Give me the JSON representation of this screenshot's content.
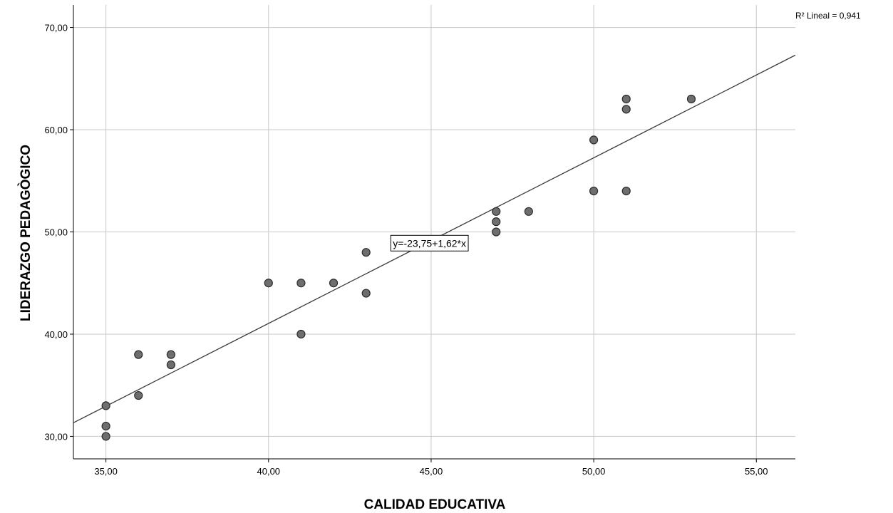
{
  "chart_data": {
    "type": "scatter",
    "xlabel": "CALIDAD EDUCATIVA",
    "ylabel": "LIDERAZGO PEDAGÒGICO",
    "xlim": [
      34,
      56.2
    ],
    "ylim": [
      27.8,
      72.2
    ],
    "x_ticks": [
      35,
      40,
      45,
      50,
      55
    ],
    "x_tick_labels": [
      "35,00",
      "40,00",
      "45,00",
      "50,00",
      "55,00"
    ],
    "y_ticks": [
      30,
      40,
      50,
      60,
      70
    ],
    "y_tick_labels": [
      "30,00",
      "40,00",
      "50,00",
      "60,00",
      "70,00"
    ],
    "grid": true,
    "points": [
      {
        "x": 35,
        "y": 30
      },
      {
        "x": 35,
        "y": 31
      },
      {
        "x": 35,
        "y": 33
      },
      {
        "x": 36,
        "y": 34
      },
      {
        "x": 36,
        "y": 38
      },
      {
        "x": 37,
        "y": 37
      },
      {
        "x": 37,
        "y": 38
      },
      {
        "x": 40,
        "y": 45
      },
      {
        "x": 41,
        "y": 40
      },
      {
        "x": 41,
        "y": 45
      },
      {
        "x": 42,
        "y": 45
      },
      {
        "x": 43,
        "y": 44
      },
      {
        "x": 43,
        "y": 48
      },
      {
        "x": 47,
        "y": 50
      },
      {
        "x": 47,
        "y": 51
      },
      {
        "x": 47,
        "y": 52
      },
      {
        "x": 48,
        "y": 52
      },
      {
        "x": 50,
        "y": 54
      },
      {
        "x": 50,
        "y": 59
      },
      {
        "x": 51,
        "y": 54
      },
      {
        "x": 51,
        "y": 62
      },
      {
        "x": 51,
        "y": 63
      },
      {
        "x": 53,
        "y": 63
      }
    ],
    "fit_line": {
      "intercept": -23.75,
      "slope": 1.62,
      "equation_label": "y=-23,75+1,62*x",
      "label_at": {
        "x": 44.95,
        "y": 48.9
      }
    },
    "r2_label": "R² Lineal = 0,941",
    "colors": {
      "point_fill": "#6e6e6e",
      "point_stroke": "#2b2b2b",
      "grid": "#c8c8c8",
      "axis": "#000000",
      "fit_line": "#3a3a3a"
    }
  }
}
